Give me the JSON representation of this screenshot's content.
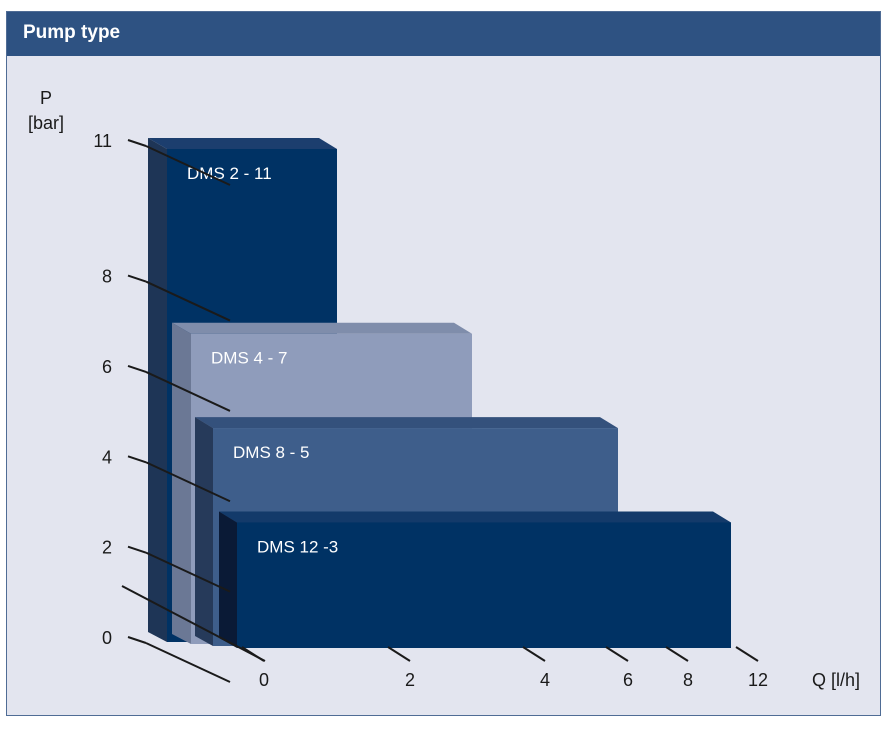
{
  "header": {
    "title": "Pump type"
  },
  "colors": {
    "panel_bg": "#e3e5ef",
    "header_bg": "#2e5282",
    "text": "#1a1a1a"
  },
  "chart_data": {
    "type": "bar",
    "title": "Pump type",
    "ylabel_line1": "P",
    "ylabel_line2": "[bar]",
    "xlabel": "Q [l/h]",
    "y_ticks": [
      0,
      2,
      4,
      6,
      8,
      11
    ],
    "x_ticks": [
      0,
      2,
      4,
      6,
      8,
      12
    ],
    "series": [
      {
        "name": "DMS 2 - 11",
        "flow": 2,
        "pressure": 11,
        "front": "#003264",
        "side": "#1e3556",
        "top": "#1c3e6e"
      },
      {
        "name": "DMS 4 - 7",
        "flow": 4,
        "pressure": 7,
        "front": "#8f9cbb",
        "side": "#6b7895",
        "top": "#7f8dab"
      },
      {
        "name": "DMS 8 - 5",
        "flow": 8,
        "pressure": 5,
        "front": "#3e5e8b",
        "side": "#263a5a",
        "top": "#34517c"
      },
      {
        "name": "DMS 12 -3",
        "flow": 12,
        "pressure": 3,
        "front": "#003264",
        "side": "#0a1a36",
        "top": "#133a6a"
      }
    ]
  }
}
